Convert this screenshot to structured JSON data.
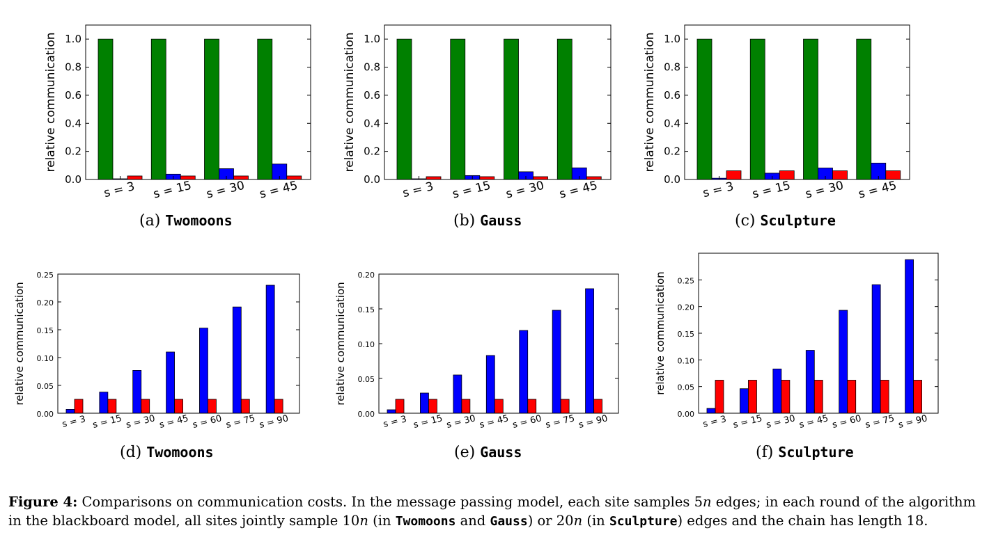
{
  "figure": {
    "caption": {
      "label": "Figure 4:",
      "t1": "Comparisons on communication costs. In the message passing model, each site samples 5",
      "v1": "n",
      "t2": " edges; in each round of the algorithm in the blackboard model, all sites jointly sample 10",
      "v2": "n",
      "t3": " (in ",
      "ds1": "Twomoons",
      "t4": " and ",
      "ds2": "Gauss",
      "t5": ") or 20",
      "v3": "n",
      "t6": " (in ",
      "ds3": "Sculpture",
      "t7": ") edges and the chain has length 18."
    },
    "subcaptions": [
      {
        "tag": "(a)",
        "name": "Twomoons"
      },
      {
        "tag": "(b)",
        "name": "Gauss"
      },
      {
        "tag": "(c)",
        "name": "Sculpture"
      },
      {
        "tag": "(d)",
        "name": "Twomoons"
      },
      {
        "tag": "(e)",
        "name": "Gauss"
      },
      {
        "tag": "(f)",
        "name": "Sculpture"
      }
    ]
  },
  "colors": {
    "green": "#008000",
    "blue": "#0000ff",
    "red": "#ff0000"
  },
  "chart_data": [
    {
      "type": "bar",
      "ylabel": "relative communication",
      "categories": [
        "s = 3",
        "s = 15",
        "s = 30",
        "s = 45"
      ],
      "series": [
        {
          "color": "green",
          "values": [
            1.0,
            1.0,
            1.0,
            1.0
          ]
        },
        {
          "color": "blue",
          "values": [
            0.005,
            0.038,
            0.077,
            0.11
          ]
        },
        {
          "color": "red",
          "values": [
            0.025,
            0.025,
            0.025,
            0.025
          ]
        }
      ],
      "ylim": [
        0,
        1.1
      ],
      "yticks": [
        "0.0",
        "0.2",
        "0.4",
        "0.6",
        "0.8",
        "1.0"
      ],
      "grid": false
    },
    {
      "type": "bar",
      "ylabel": "relative communication",
      "categories": [
        "s = 3",
        "s = 15",
        "s = 30",
        "s = 45"
      ],
      "series": [
        {
          "color": "green",
          "values": [
            1.0,
            1.0,
            1.0,
            1.0
          ]
        },
        {
          "color": "blue",
          "values": [
            0.005,
            0.028,
            0.055,
            0.083
          ]
        },
        {
          "color": "red",
          "values": [
            0.02,
            0.02,
            0.02,
            0.02
          ]
        }
      ],
      "ylim": [
        0,
        1.1
      ],
      "yticks": [
        "0.0",
        "0.2",
        "0.4",
        "0.6",
        "0.8",
        "1.0"
      ],
      "grid": false
    },
    {
      "type": "bar",
      "ylabel": "relative communication",
      "categories": [
        "s = 3",
        "s = 15",
        "s = 30",
        "s = 45"
      ],
      "series": [
        {
          "color": "green",
          "values": [
            1.0,
            1.0,
            1.0,
            1.0
          ]
        },
        {
          "color": "blue",
          "values": [
            0.009,
            0.045,
            0.082,
            0.117
          ]
        },
        {
          "color": "red",
          "values": [
            0.062,
            0.062,
            0.062,
            0.062
          ]
        }
      ],
      "ylim": [
        0,
        1.1
      ],
      "yticks": [
        "0.0",
        "0.2",
        "0.4",
        "0.6",
        "0.8",
        "1.0"
      ],
      "grid": false
    },
    {
      "type": "bar",
      "ylabel": "relative communication",
      "categories": [
        "s = 3",
        "s = 15",
        "s = 30",
        "s = 45",
        "s = 60",
        "s = 75",
        "s = 90"
      ],
      "series": [
        {
          "color": "blue",
          "values": [
            0.007,
            0.038,
            0.077,
            0.11,
            0.153,
            0.191,
            0.23
          ]
        },
        {
          "color": "red",
          "values": [
            0.025,
            0.025,
            0.025,
            0.025,
            0.025,
            0.025,
            0.025
          ]
        }
      ],
      "ylim": [
        0,
        0.25
      ],
      "yticks": [
        "0.00",
        "0.05",
        "0.10",
        "0.15",
        "0.20",
        "0.25"
      ],
      "grid": false
    },
    {
      "type": "bar",
      "ylabel": "relative communication",
      "categories": [
        "s = 3",
        "s = 15",
        "s = 30",
        "s = 45",
        "s = 60",
        "s = 75",
        "s = 90"
      ],
      "series": [
        {
          "color": "blue",
          "values": [
            0.005,
            0.029,
            0.055,
            0.083,
            0.119,
            0.148,
            0.179
          ]
        },
        {
          "color": "red",
          "values": [
            0.02,
            0.02,
            0.02,
            0.02,
            0.02,
            0.02,
            0.02
          ]
        }
      ],
      "ylim": [
        0,
        0.2
      ],
      "yticks": [
        "0.00",
        "0.05",
        "0.10",
        "0.15",
        "0.20"
      ],
      "grid": false
    },
    {
      "type": "bar",
      "ylabel": "relative communication",
      "categories": [
        "s = 3",
        "s = 15",
        "s = 30",
        "s = 45",
        "s = 60",
        "s = 75",
        "s = 90"
      ],
      "series": [
        {
          "color": "blue",
          "values": [
            0.009,
            0.046,
            0.083,
            0.118,
            0.193,
            0.241,
            0.288
          ]
        },
        {
          "color": "red",
          "values": [
            0.062,
            0.062,
            0.062,
            0.062,
            0.062,
            0.062,
            0.062
          ]
        }
      ],
      "ylim": [
        0,
        0.3
      ],
      "yticks": [
        "0.00",
        "0.05",
        "0.10",
        "0.15",
        "0.20",
        "0.25"
      ],
      "grid": false
    }
  ]
}
